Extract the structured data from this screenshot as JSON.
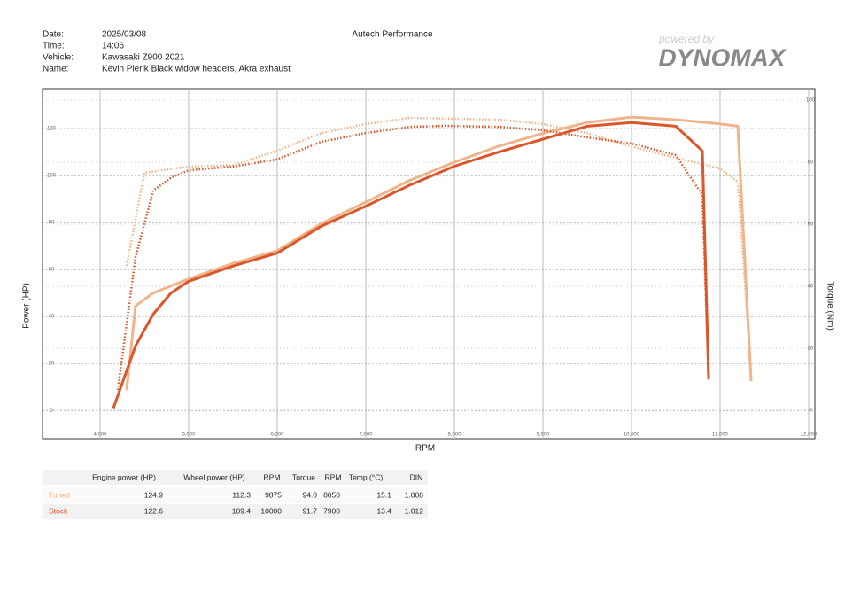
{
  "header": {
    "date_label": "Date:",
    "date": "2025/03/08",
    "time_label": "Time:",
    "time": "14:06",
    "vehicle_label": "Vehicle:",
    "vehicle": "Kawasaki Z900 2021",
    "name_label": "Name:",
    "name": "Kevin Pierik Black widow headers, Akra exhaust",
    "shop": "Autech Performance",
    "logo_small": "powered by",
    "logo": "DYNOMAX"
  },
  "chart_data": {
    "type": "line",
    "x_label": "RPM",
    "y_label": "Power (HP)",
    "y2_label": "Torque (Nm)",
    "xlim": [
      3350,
      12070
    ],
    "xticks": [
      {
        "value": 4000,
        "label": "4,000"
      },
      {
        "value": 5000,
        "label": "5,000"
      },
      {
        "value": 6000,
        "label": "6,000"
      },
      {
        "value": 7000,
        "label": "7,000"
      },
      {
        "value": 8000,
        "label": "8,000"
      },
      {
        "value": 9000,
        "label": "9,000"
      },
      {
        "value": 10000,
        "label": "10,000"
      },
      {
        "value": 11000,
        "label": "11,000"
      },
      {
        "value": 12000,
        "label": "12,000"
      }
    ],
    "ylim": [
      -12,
      137
    ],
    "yticks": [
      0,
      20,
      40,
      60,
      80,
      100,
      120
    ],
    "y2lim": [
      -9.1,
      103.7
    ],
    "y2ticks": [
      0,
      20,
      40,
      60,
      80,
      100
    ],
    "grid": true,
    "series": [
      {
        "name": "Tuned",
        "color": "#f0b48a",
        "style": "solid",
        "x": [
          4300,
          4400,
          4600,
          5000,
          5500,
          6000,
          6500,
          7000,
          7500,
          8000,
          8500,
          9000,
          9500,
          10000,
          10500,
          11000,
          11200,
          11350
        ],
        "values": [
          8.7,
          44.5,
          50,
          56,
          62.6,
          68,
          79.6,
          88.7,
          98,
          105.7,
          112.5,
          118,
          122.6,
          124.9,
          123.8,
          122,
          121,
          12.5
        ]
      },
      {
        "name": "Tuned",
        "color": "#f0b48a",
        "style": "dotted",
        "axis": "y2",
        "x": [
          4300,
          4500,
          5000,
          5500,
          6000,
          6500,
          7000,
          7500,
          8050,
          8500,
          9000,
          9500,
          10000,
          10500,
          11000,
          11200,
          11350
        ],
        "values": [
          46.6,
          76.6,
          78.6,
          79,
          83.7,
          89.4,
          92.3,
          94.3,
          94.0,
          93.7,
          92.3,
          89.4,
          85,
          81.4,
          78,
          73.7,
          12.3
        ]
      },
      {
        "name": "Stock",
        "color": "#d9572a",
        "style": "solid",
        "x": [
          4150,
          4400,
          4600,
          4800,
          5000,
          5500,
          6000,
          6500,
          7000,
          7500,
          8000,
          8500,
          9000,
          9500,
          10000,
          10500,
          10800,
          10870
        ],
        "values": [
          1,
          27.5,
          41,
          50,
          55,
          61.5,
          67,
          78.5,
          87,
          96,
          104,
          110,
          115.5,
          121,
          122.6,
          121,
          110.5,
          14
        ]
      },
      {
        "name": "Stock",
        "color": "#d9572a",
        "style": "dotted",
        "axis": "y2",
        "x": [
          4200,
          4400,
          4600,
          4800,
          5000,
          5500,
          6000,
          6500,
          7000,
          7500,
          7900,
          8500,
          9000,
          9500,
          10000,
          10500,
          10800,
          10870
        ],
        "values": [
          6.6,
          49.4,
          70.9,
          75,
          77.4,
          78.6,
          80.9,
          86.6,
          89.4,
          91.4,
          91.7,
          91.4,
          90.3,
          88,
          86,
          82.3,
          69.4,
          9.4
        ]
      }
    ]
  },
  "table": {
    "columns": [
      "Engine power (HP)",
      "Wheel power (HP)",
      "RPM",
      "Torque",
      "RPM",
      "Temp (°C)",
      "DIN"
    ],
    "rows": [
      [
        "Tuned",
        "124.9",
        "112.3",
        "9875",
        "94.0",
        "8050",
        "15.1",
        "1.008"
      ],
      [
        "Stock",
        "122.6",
        "109.4",
        "10000",
        "91.7",
        "7900",
        "13.4",
        "1.012"
      ]
    ]
  }
}
